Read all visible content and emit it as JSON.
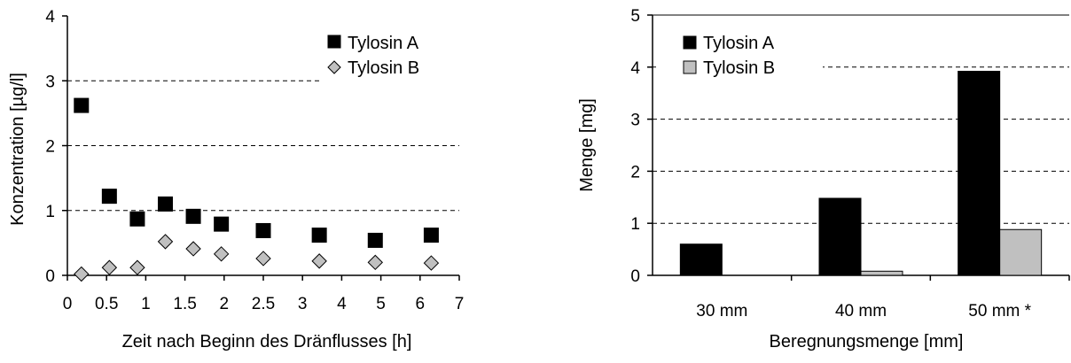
{
  "chart_data": [
    {
      "type": "scatter",
      "title": "",
      "xlabel": "Zeit nach Beginn des Dränflusses [h]",
      "ylabel": "Konzentration [µg/l]",
      "xlim": [
        0,
        7
      ],
      "ylim": [
        0,
        4
      ],
      "xticks": [
        "0",
        "0.5",
        "1",
        "1.5",
        "2",
        "2.5",
        "3",
        "4",
        "5",
        "6",
        "7"
      ],
      "yticks": [
        "0",
        "1",
        "2",
        "3",
        "4"
      ],
      "grid": "horizontal dashed",
      "legend_position": "top-right",
      "series": [
        {
          "name": "Tylosin A",
          "marker": "square",
          "color": "#000000",
          "points": [
            {
              "x": 0.25,
              "y": 2.62
            },
            {
              "x": 0.75,
              "y": 1.22
            },
            {
              "x": 1.25,
              "y": 0.87
            },
            {
              "x": 1.75,
              "y": 1.1
            },
            {
              "x": 2.25,
              "y": 0.91
            },
            {
              "x": 2.75,
              "y": 0.79
            },
            {
              "x": 3.5,
              "y": 0.69
            },
            {
              "x": 4.5,
              "y": 0.62
            },
            {
              "x": 5.5,
              "y": 0.54
            },
            {
              "x": 6.5,
              "y": 0.62
            }
          ]
        },
        {
          "name": "Tylosin B",
          "marker": "diamond",
          "color": "#c0c0c0",
          "points": [
            {
              "x": 0.25,
              "y": 0.02
            },
            {
              "x": 0.75,
              "y": 0.12
            },
            {
              "x": 1.25,
              "y": 0.12
            },
            {
              "x": 1.75,
              "y": 0.52
            },
            {
              "x": 2.25,
              "y": 0.41
            },
            {
              "x": 2.75,
              "y": 0.33
            },
            {
              "x": 3.5,
              "y": 0.26
            },
            {
              "x": 4.5,
              "y": 0.22
            },
            {
              "x": 5.5,
              "y": 0.2
            },
            {
              "x": 6.5,
              "y": 0.19
            }
          ]
        }
      ]
    },
    {
      "type": "bar",
      "title": "",
      "xlabel": "Beregnungsmenge [mm]",
      "ylabel": "Menge [mg]",
      "ylim": [
        0,
        5
      ],
      "yticks": [
        "0",
        "1",
        "2",
        "3",
        "4",
        "5"
      ],
      "categories": [
        "30 mm",
        "40 mm",
        "50 mm *"
      ],
      "grid": "horizontal dashed",
      "legend_position": "top-left",
      "series": [
        {
          "name": "Tylosin A",
          "color": "#000000",
          "values": [
            0.6,
            1.48,
            3.92
          ]
        },
        {
          "name": "Tylosin B",
          "color": "#c0c0c0",
          "values": [
            0.0,
            0.08,
            0.88
          ]
        }
      ]
    }
  ]
}
